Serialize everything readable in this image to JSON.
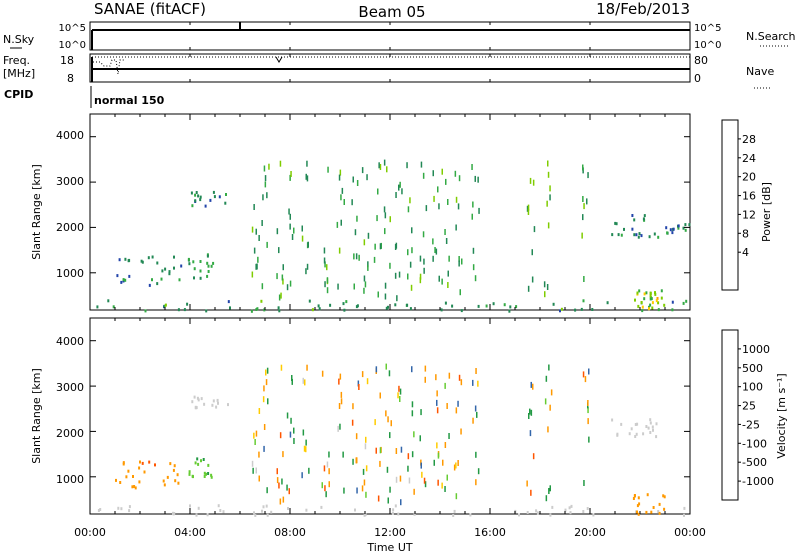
{
  "header": {
    "station": "SANAE (fitACF)",
    "beam": "Beam 05",
    "date": "18/Feb/2013"
  },
  "nsky_panel": {
    "left_label": "N.Sky",
    "right_label": "N.Search",
    "left_ticks": [
      "10^5",
      "10^0"
    ],
    "right_ticks": [
      "10^5",
      "10^0"
    ]
  },
  "freq_panel": {
    "left_label_1": "Freq.",
    "left_label_2": "[MHz]",
    "right_label": "Nave",
    "left_ticks": [
      "18",
      "8"
    ],
    "right_ticks": [
      "80",
      "0"
    ]
  },
  "cpid_panel": {
    "label": "CPID",
    "mode_text": "normal 150"
  },
  "x_axis": {
    "label": "Time UT",
    "ticks": [
      "00:00",
      "04:00",
      "08:00",
      "12:00",
      "16:00",
      "20:00",
      "00:00"
    ],
    "range_hours": [
      0,
      24
    ]
  },
  "power_panel": {
    "ylabel": "Slant Range [km]",
    "yticks": [
      "4000",
      "3000",
      "2000",
      "1000"
    ],
    "colorbar_label": "Power [dB]",
    "colorbar_ticks": [
      "28",
      "24",
      "20",
      "16",
      "12",
      "8",
      "4"
    ],
    "colorbar_colors": [
      "#ff0000",
      "#ff5500",
      "#ff9900",
      "#ffcc00",
      "#7fcc00",
      "#33aa44",
      "#228855",
      "#2244aa",
      "#0000ff"
    ]
  },
  "velocity_panel": {
    "ylabel": "Slant Range [km]",
    "yticks": [
      "4000",
      "3000",
      "2000",
      "1000"
    ],
    "colorbar_label": "Velocity [m s⁻¹]",
    "colorbar_ticks": [
      "1000",
      "500",
      "100",
      "25",
      "-25",
      "-100",
      "-500",
      "-1000"
    ],
    "colorbar_colors": [
      "#2222cc",
      "#3366aa",
      "#229944",
      "#66cc33",
      "#cccccc",
      "#ffcc00",
      "#ff9900",
      "#ff5500",
      "#ff0000"
    ]
  },
  "chart_data": [
    {
      "type": "heatmap",
      "title": "Power",
      "xlabel": "Time UT",
      "ylabel": "Slant Range [km]",
      "xlim_hours": [
        0,
        24
      ],
      "ylim_km": [
        180,
        4500
      ],
      "clim_db": [
        0,
        32
      ],
      "clusters": [
        {
          "t0": 1.0,
          "t1": 3.8,
          "r0": 750,
          "r1": 1400,
          "v": 6
        },
        {
          "t0": 3.9,
          "t1": 4.9,
          "r0": 850,
          "r1": 1450,
          "v": 8
        },
        {
          "t0": 4.0,
          "t1": 5.5,
          "r0": 2500,
          "r1": 2850,
          "v": 6
        },
        {
          "t0": 0.2,
          "t1": 24.0,
          "r0": 180,
          "r1": 420,
          "v": 8
        },
        {
          "t0": 20.8,
          "t1": 22.7,
          "r0": 1800,
          "r1": 2300,
          "v": 6
        },
        {
          "t0": 23.0,
          "t1": 24.0,
          "r0": 1900,
          "r1": 2100,
          "v": 6
        },
        {
          "t0": 21.7,
          "t1": 23.0,
          "r0": 200,
          "r1": 700,
          "v": 12
        },
        {
          "t0": 22.0,
          "t1": 22.8,
          "r0": 250,
          "r1": 600,
          "v": 15
        }
      ]
    },
    {
      "type": "heatmap",
      "title": "Velocity",
      "xlabel": "Time UT",
      "ylabel": "Slant Range [km]",
      "xlim_hours": [
        0,
        24
      ],
      "ylim_km": [
        180,
        4500
      ],
      "clim_ms": [
        -1000,
        1000
      ],
      "clusters": [
        {
          "t0": 1.0,
          "t1": 3.5,
          "r0": 750,
          "r1": 1400,
          "v": -400
        },
        {
          "t0": 3.9,
          "t1": 4.9,
          "r0": 1000,
          "r1": 1450,
          "v": 80
        },
        {
          "t0": 4.0,
          "t1": 5.5,
          "r0": 2550,
          "r1": 2800,
          "v": 0
        },
        {
          "t0": 0.2,
          "t1": 24.0,
          "r0": 180,
          "r1": 400,
          "v": 0
        },
        {
          "t0": 20.8,
          "t1": 22.7,
          "r0": 1800,
          "r1": 2300,
          "v": 0
        },
        {
          "t0": 21.7,
          "t1": 23.0,
          "r0": 200,
          "r1": 650,
          "v": -200
        }
      ]
    }
  ]
}
